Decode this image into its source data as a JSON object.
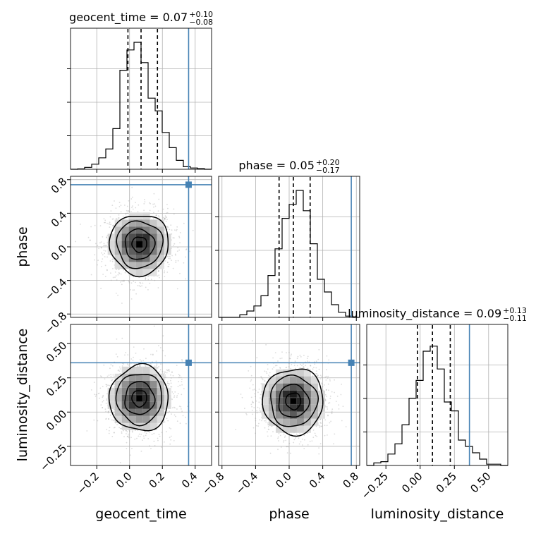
{
  "chart_data": {
    "type": "corner",
    "parameters": [
      "geocent_time",
      "phase",
      "luminosity_distance"
    ],
    "truths": {
      "geocent_time": 0.36,
      "phase": 0.74,
      "luminosity_distance": 0.36
    },
    "truth_color": "#4682b4",
    "grid": true,
    "axes": {
      "geocent_time": {
        "label": "geocent_time",
        "range": [
          -0.36,
          0.5
        ],
        "ticks": [
          -0.2,
          0.0,
          0.2,
          0.4
        ],
        "tick_labels": [
          "−0.2",
          "0.0",
          "0.2",
          "0.4"
        ]
      },
      "phase": {
        "label": "phase",
        "range": [
          -0.84,
          0.84
        ],
        "ticks": [
          -0.8,
          -0.4,
          0.0,
          0.4,
          0.8
        ],
        "tick_labels": [
          "−0.8",
          "−0.4",
          "0.0",
          "0.4",
          "0.8"
        ]
      },
      "luminosity_distance": {
        "label": "luminosity_distance",
        "range": [
          -0.39,
          0.64
        ],
        "ticks": [
          -0.25,
          0.0,
          0.25,
          0.5
        ],
        "tick_labels": [
          "−0.25",
          "0.00",
          "0.25",
          "0.50"
        ]
      }
    },
    "titles": [
      {
        "name": "geocent_time",
        "text": "geocent_time = 0.07",
        "sup": "+0.10",
        "sub": "−0.08"
      },
      {
        "name": "phase",
        "text": "phase = 0.05",
        "sup": "+0.20",
        "sub": "−0.17"
      },
      {
        "name": "luminosity_distance",
        "text": "luminosity_distance = 0.09",
        "sup": "+0.13",
        "sub": "−0.11"
      }
    ],
    "histograms": {
      "geocent_time": {
        "bin_edges": [
          -0.36,
          -0.317,
          -0.274,
          -0.231,
          -0.188,
          -0.145,
          -0.102,
          -0.059,
          -0.016,
          0.027,
          0.07,
          0.113,
          0.156,
          0.199,
          0.242,
          0.285,
          0.328,
          0.371,
          0.414,
          0.457,
          0.5
        ],
        "counts": [
          0,
          0.003,
          0.015,
          0.04,
          0.09,
          0.16,
          0.32,
          0.78,
          0.94,
          1.0,
          0.84,
          0.56,
          0.46,
          0.29,
          0.17,
          0.07,
          0.02,
          0.01,
          0.005,
          0
        ],
        "quantiles": [
          -0.01,
          0.07,
          0.17
        ]
      },
      "phase": {
        "bin_edges": [
          -0.84,
          -0.756,
          -0.672,
          -0.588,
          -0.504,
          -0.42,
          -0.336,
          -0.252,
          -0.168,
          -0.084,
          0.0,
          0.084,
          0.168,
          0.252,
          0.336,
          0.42,
          0.504,
          0.588,
          0.672,
          0.756,
          0.84
        ],
        "counts": [
          0,
          0,
          0,
          0.02,
          0.05,
          0.09,
          0.17,
          0.33,
          0.54,
          0.78,
          0.89,
          1.0,
          0.84,
          0.58,
          0.3,
          0.2,
          0.1,
          0.04,
          0.01,
          0
        ],
        "quantiles": [
          -0.12,
          0.05,
          0.25
        ]
      },
      "luminosity_distance": {
        "bin_edges": [
          -0.39,
          -0.3385,
          -0.287,
          -0.2355,
          -0.184,
          -0.1325,
          -0.081,
          -0.0295,
          0.022,
          0.0735,
          0.125,
          0.1765,
          0.228,
          0.2795,
          0.331,
          0.3825,
          0.434,
          0.4855,
          0.537,
          0.5885,
          0.64
        ],
        "counts": [
          0,
          0.02,
          0.03,
          0.09,
          0.17,
          0.32,
          0.53,
          0.67,
          0.9,
          0.94,
          0.76,
          0.5,
          0.43,
          0.2,
          0.15,
          0.1,
          0.05,
          0.01,
          0.01,
          0
        ],
        "quantiles": [
          -0.02,
          0.09,
          0.22
        ]
      }
    },
    "pairs": [
      {
        "x": "geocent_time",
        "y": "phase",
        "center": [
          0.06,
          0.03
        ],
        "sigma": [
          0.09,
          0.18
        ]
      },
      {
        "x": "geocent_time",
        "y": "luminosity_distance",
        "center": [
          0.06,
          0.1
        ],
        "sigma": [
          0.09,
          0.12
        ]
      },
      {
        "x": "phase",
        "y": "luminosity_distance",
        "center": [
          0.05,
          0.08
        ],
        "sigma": [
          0.18,
          0.12
        ]
      }
    ]
  }
}
